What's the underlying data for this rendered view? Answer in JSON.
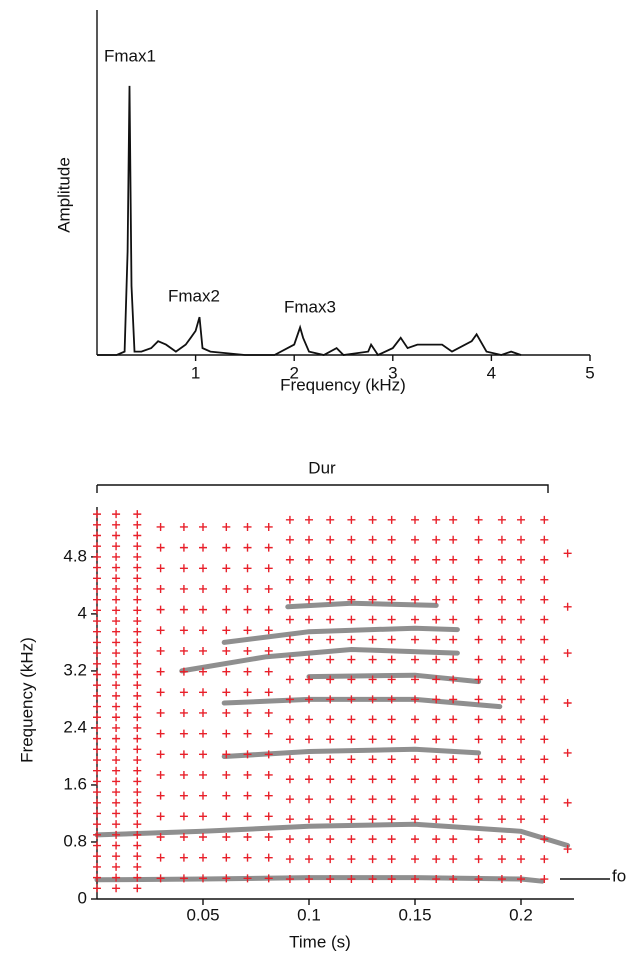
{
  "chart_data": [
    {
      "type": "line",
      "xlabel": "Frequency (kHz)",
      "ylabel": "Amplitude",
      "x": [
        0,
        0.2,
        0.28,
        0.31,
        0.33,
        0.35,
        0.38,
        0.45,
        0.55,
        0.62,
        0.7,
        0.8,
        0.9,
        0.95,
        1.0,
        1.04,
        1.07,
        1.15,
        1.5,
        1.8,
        2.0,
        2.06,
        2.09,
        2.15,
        2.3,
        2.43,
        2.5,
        2.75,
        2.78,
        2.85,
        3.0,
        3.08,
        3.15,
        3.25,
        3.35,
        3.5,
        3.6,
        3.8,
        3.85,
        3.95,
        4.1,
        4.2,
        4.3
      ],
      "values": [
        0,
        0,
        1,
        30,
        78,
        20,
        1,
        1,
        2,
        4,
        3,
        1,
        3,
        5,
        7,
        11,
        2,
        1,
        0,
        0,
        3,
        8,
        5,
        1,
        0,
        2,
        0,
        1,
        3,
        0,
        2,
        5,
        2,
        3,
        3,
        3,
        1,
        4,
        6,
        1,
        0,
        1,
        0
      ],
      "color": "#111111",
      "xlim": [
        0,
        5
      ],
      "xticks": [
        1,
        2,
        3,
        4,
        5
      ],
      "ylim": [
        0,
        100
      ],
      "annotations": [
        "Fmax1",
        "Fmax2",
        "Fmax3"
      ]
    },
    {
      "type": "spectrogram",
      "xlabel": "Time (s)",
      "ylabel": "Frequency (kHz)",
      "xlim": [
        0,
        0.225
      ],
      "xticks": [
        0.05,
        0.1,
        0.15,
        0.2
      ],
      "ylim": [
        0,
        5.5
      ],
      "yticks": [
        0,
        0.8,
        1.6,
        2.4,
        3.2,
        4,
        4.8
      ],
      "annotations": [
        "Dur",
        "fo"
      ],
      "track_color": "#333333",
      "cross_color": "#e8202a",
      "tracks": [
        {
          "t": [
            0,
            0.05,
            0.1,
            0.15,
            0.2,
            0.21
          ],
          "f": [
            0.27,
            0.28,
            0.3,
            0.3,
            0.28,
            0.25
          ]
        },
        {
          "t": [
            0,
            0.05,
            0.1,
            0.15,
            0.2,
            0.222
          ],
          "f": [
            0.9,
            0.95,
            1.02,
            1.05,
            0.95,
            0.75
          ]
        },
        {
          "t": [
            0.06,
            0.1,
            0.15,
            0.18
          ],
          "f": [
            2.0,
            2.07,
            2.1,
            2.05
          ]
        },
        {
          "t": [
            0.06,
            0.1,
            0.15,
            0.19
          ],
          "f": [
            2.75,
            2.8,
            2.8,
            2.7
          ]
        },
        {
          "t": [
            0.1,
            0.15,
            0.18
          ],
          "f": [
            3.12,
            3.14,
            3.05
          ]
        },
        {
          "t": [
            0.04,
            0.08,
            0.12,
            0.17
          ],
          "f": [
            3.2,
            3.4,
            3.5,
            3.45
          ]
        },
        {
          "t": [
            0.06,
            0.1,
            0.15,
            0.17
          ],
          "f": [
            3.6,
            3.75,
            3.8,
            3.78
          ]
        },
        {
          "t": [
            0.09,
            0.12,
            0.16
          ],
          "f": [
            4.1,
            4.15,
            4.12
          ]
        }
      ],
      "crosses": [
        {
          "t": 0,
          "f": [
            0.15,
            0.3,
            0.45,
            0.6,
            0.75,
            0.9,
            1.05,
            1.2,
            1.35,
            1.5,
            1.65,
            1.8,
            1.95,
            2.1,
            2.25,
            2.4,
            2.55,
            2.7,
            2.85,
            3,
            3.15,
            3.3,
            3.45,
            3.6,
            3.75,
            3.9,
            4.05,
            4.2,
            4.35,
            4.5,
            4.65,
            4.8,
            4.95,
            5.1,
            5.25,
            5.4
          ]
        },
        {
          "t": 0.009,
          "f": [
            0.15,
            0.3,
            0.45,
            0.6,
            0.75,
            0.9,
            1.05,
            1.2,
            1.35,
            1.5,
            1.65,
            1.8,
            1.95,
            2.1,
            2.25,
            2.4,
            2.55,
            2.7,
            2.85,
            3,
            3.15,
            3.3,
            3.45,
            3.6,
            3.75,
            3.9,
            4.05,
            4.2,
            4.35,
            4.5,
            4.65,
            4.8,
            4.95,
            5.1,
            5.25,
            5.4
          ]
        },
        {
          "t": 0.019,
          "f": [
            0.15,
            0.3,
            0.45,
            0.6,
            0.75,
            0.9,
            1.05,
            1.2,
            1.35,
            1.5,
            1.65,
            1.8,
            1.95,
            2.1,
            2.25,
            2.4,
            2.55,
            2.7,
            2.85,
            3,
            3.15,
            3.3,
            3.45,
            3.6,
            3.75,
            3.9,
            4.05,
            4.2,
            4.35,
            4.5,
            4.65,
            4.8,
            4.95,
            5.1,
            5.25,
            5.4
          ]
        },
        {
          "t": 0.03,
          "f": [
            0.29,
            0.58,
            0.87,
            1.16,
            1.45,
            1.74,
            2.03,
            2.32,
            2.61,
            2.9,
            3.19,
            3.48,
            3.77,
            4.06,
            4.35,
            4.64,
            4.93,
            5.22
          ]
        },
        {
          "t": 0.041,
          "f": [
            0.29,
            0.58,
            0.87,
            1.16,
            1.45,
            1.74,
            2.03,
            2.32,
            2.61,
            2.9,
            3.19,
            3.48,
            3.77,
            4.06,
            4.35,
            4.64,
            4.93,
            5.22
          ]
        },
        {
          "t": 0.05,
          "f": [
            0.29,
            0.58,
            0.87,
            1.16,
            1.45,
            1.74,
            2.03,
            2.32,
            2.61,
            2.9,
            3.19,
            3.48,
            3.77,
            4.06,
            4.35,
            4.64,
            4.93,
            5.22
          ]
        },
        {
          "t": 0.061,
          "f": [
            0.29,
            0.58,
            0.87,
            1.16,
            1.45,
            1.74,
            2.03,
            2.32,
            2.61,
            2.9,
            3.19,
            3.48,
            3.77,
            4.06,
            4.35,
            4.64,
            4.93,
            5.22
          ]
        },
        {
          "t": 0.071,
          "f": [
            0.29,
            0.58,
            0.87,
            1.16,
            1.45,
            1.74,
            2.03,
            2.32,
            2.61,
            2.9,
            3.19,
            3.48,
            3.77,
            4.06,
            4.35,
            4.64,
            4.93,
            5.22
          ]
        },
        {
          "t": 0.081,
          "f": [
            0.29,
            0.58,
            0.87,
            1.16,
            1.45,
            1.74,
            2.03,
            2.32,
            2.61,
            2.9,
            3.19,
            3.48,
            3.77,
            4.06,
            4.35,
            4.64,
            4.93,
            5.22
          ]
        },
        {
          "t": 0.091,
          "f": [
            0.28,
            0.56,
            0.84,
            1.12,
            1.4,
            1.68,
            1.96,
            2.24,
            2.52,
            2.8,
            3.08,
            3.36,
            3.64,
            3.92,
            4.2,
            4.48,
            4.76,
            5.04,
            5.32
          ]
        },
        {
          "t": 0.1,
          "f": [
            0.28,
            0.56,
            0.84,
            1.12,
            1.4,
            1.68,
            1.96,
            2.24,
            2.52,
            2.8,
            3.08,
            3.36,
            3.64,
            3.92,
            4.2,
            4.48,
            4.76,
            5.04,
            5.32
          ]
        },
        {
          "t": 0.11,
          "f": [
            0.28,
            0.56,
            0.84,
            1.12,
            1.4,
            1.68,
            1.96,
            2.24,
            2.52,
            2.8,
            3.08,
            3.36,
            3.64,
            3.92,
            4.2,
            4.48,
            4.76,
            5.04,
            5.32
          ]
        },
        {
          "t": 0.12,
          "f": [
            0.28,
            0.56,
            0.84,
            1.12,
            1.4,
            1.68,
            1.96,
            2.24,
            2.52,
            2.8,
            3.08,
            3.36,
            3.64,
            3.92,
            4.2,
            4.48,
            4.76,
            5.04,
            5.32
          ]
        },
        {
          "t": 0.13,
          "f": [
            0.28,
            0.56,
            0.84,
            1.12,
            1.4,
            1.68,
            1.96,
            2.24,
            2.52,
            2.8,
            3.08,
            3.36,
            3.64,
            3.92,
            4.2,
            4.48,
            4.76,
            5.04,
            5.32
          ]
        },
        {
          "t": 0.139,
          "f": [
            0.28,
            0.56,
            0.84,
            1.12,
            1.4,
            1.68,
            1.96,
            2.24,
            2.52,
            2.8,
            3.08,
            3.36,
            3.64,
            3.92,
            4.2,
            4.48,
            4.76,
            5.04,
            5.32
          ]
        },
        {
          "t": 0.15,
          "f": [
            0.28,
            0.56,
            0.84,
            1.12,
            1.4,
            1.68,
            1.96,
            2.24,
            2.52,
            2.8,
            3.08,
            3.36,
            3.64,
            3.92,
            4.2,
            4.48,
            4.76,
            5.04,
            5.32
          ]
        },
        {
          "t": 0.16,
          "f": [
            0.28,
            0.56,
            0.84,
            1.12,
            1.4,
            1.68,
            1.96,
            2.24,
            2.52,
            2.8,
            3.08,
            3.36,
            3.64,
            3.92,
            4.2,
            4.48,
            4.76,
            5.04,
            5.32
          ]
        },
        {
          "t": 0.168,
          "f": [
            0.28,
            0.56,
            0.84,
            1.12,
            1.4,
            1.68,
            1.96,
            2.24,
            2.52,
            2.8,
            3.08,
            3.36,
            3.64,
            3.92,
            4.2,
            4.48,
            4.76,
            5.04,
            5.32
          ]
        },
        {
          "t": 0.18,
          "f": [
            0.28,
            0.56,
            0.84,
            1.12,
            1.4,
            1.68,
            1.96,
            2.24,
            2.52,
            2.8,
            3.08,
            3.36,
            3.64,
            3.92,
            4.2,
            4.48,
            4.76,
            5.04,
            5.32
          ]
        },
        {
          "t": 0.191,
          "f": [
            0.28,
            0.56,
            0.84,
            1.12,
            1.4,
            1.68,
            1.96,
            2.24,
            2.52,
            2.8,
            3.08,
            3.36,
            3.64,
            3.92,
            4.2,
            4.48,
            4.76,
            5.04,
            5.32
          ]
        },
        {
          "t": 0.2,
          "f": [
            0.28,
            0.56,
            0.84,
            1.12,
            1.4,
            1.68,
            1.96,
            2.24,
            2.52,
            2.8,
            3.08,
            3.36,
            3.64,
            3.92,
            4.2,
            4.48,
            4.76,
            5.04,
            5.32
          ]
        },
        {
          "t": 0.211,
          "f": [
            0.28,
            0.56,
            0.84,
            1.12,
            1.4,
            1.68,
            1.96,
            2.24,
            2.52,
            2.8,
            3.08,
            3.36,
            3.64,
            3.92,
            4.2,
            4.48,
            4.76,
            5.04,
            5.32
          ]
        },
        {
          "t": 0.222,
          "f": [
            0.7,
            1.35,
            2.05,
            2.75,
            3.45,
            4.1,
            4.85
          ]
        }
      ]
    }
  ]
}
